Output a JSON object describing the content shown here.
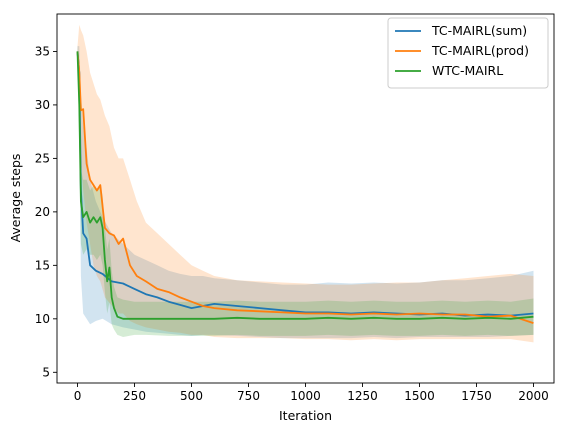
{
  "chart_data": {
    "type": "line",
    "title": "",
    "xlabel": "Iteration",
    "ylabel": "Average steps",
    "xlim": [
      -90,
      2090
    ],
    "ylim": [
      4,
      38.5
    ],
    "xticks": [
      0,
      250,
      500,
      750,
      1000,
      1250,
      1500,
      1750,
      2000
    ],
    "yticks": [
      5,
      10,
      15,
      20,
      25,
      30,
      35
    ],
    "grid": false,
    "legend_position": "top-right",
    "series": [
      {
        "name": "TC-MAIRL(sum)",
        "color": "#1f77b4",
        "band_color": "#1f77b4",
        "x": [
          0,
          8,
          15,
          25,
          40,
          55,
          80,
          110,
          150,
          200,
          250,
          300,
          350,
          400,
          450,
          500,
          550,
          600,
          700,
          800,
          900,
          1000,
          1100,
          1200,
          1300,
          1400,
          1500,
          1600,
          1700,
          1800,
          1900,
          2000
        ],
        "y": [
          35,
          33,
          22,
          18,
          17.5,
          15,
          14.5,
          14.2,
          13.5,
          13.3,
          12.8,
          12.3,
          12,
          11.6,
          11.3,
          11,
          11.2,
          11.4,
          11.2,
          11,
          10.8,
          10.6,
          10.6,
          10.5,
          10.6,
          10.5,
          10.4,
          10.5,
          10.3,
          10.4,
          10.3,
          10.5
        ],
        "lower": [
          34.5,
          27,
          14,
          10.5,
          10,
          9.5,
          9.8,
          10,
          9.5,
          9.2,
          9,
          8.8,
          8.7,
          8.6,
          8.5,
          8.4,
          8.5,
          8.5,
          8.4,
          8.3,
          8.2,
          8.2,
          8.2,
          8.2,
          8.3,
          8.2,
          8.3,
          8.3,
          8.3,
          8.3,
          8.4,
          8.5
        ],
        "upper": [
          35.5,
          35.5,
          31,
          28,
          26,
          23,
          21,
          19.5,
          18,
          17,
          16,
          15.5,
          15,
          14.5,
          14.2,
          14,
          14,
          13.8,
          13.6,
          13.4,
          13.2,
          13.2,
          13.4,
          13.3,
          13.4,
          13.3,
          13.4,
          13.6,
          13.6,
          13.8,
          14,
          14.5
        ]
      },
      {
        "name": "TC-MAIRL(prod)",
        "color": "#ff7f0e",
        "band_color": "#ff7f0e",
        "x": [
          0,
          8,
          15,
          25,
          40,
          55,
          70,
          85,
          100,
          120,
          140,
          160,
          180,
          200,
          230,
          260,
          300,
          350,
          400,
          450,
          500,
          550,
          600,
          700,
          800,
          900,
          1000,
          1100,
          1200,
          1300,
          1400,
          1500,
          1600,
          1700,
          1800,
          1900,
          2000
        ],
        "y": [
          35,
          33,
          29.5,
          29.6,
          24.5,
          23,
          22.5,
          22,
          22.5,
          18.5,
          18,
          17.8,
          17,
          17.5,
          15,
          14,
          13.5,
          12.8,
          12.5,
          12,
          11.6,
          11.2,
          11,
          10.8,
          10.7,
          10.6,
          10.5,
          10.5,
          10.4,
          10.5,
          10.4,
          10.5,
          10.4,
          10.4,
          10.2,
          10.3,
          9.6
        ],
        "lower": [
          34.5,
          32,
          25,
          22,
          19,
          17,
          15,
          14,
          13.5,
          12,
          11.5,
          11,
          10.5,
          10.5,
          9.8,
          9.5,
          9.2,
          9,
          8.8,
          8.7,
          8.5,
          8.5,
          8.3,
          8.2,
          8.2,
          8.2,
          8.1,
          8.1,
          8,
          8.1,
          8,
          8.1,
          8.1,
          8.1,
          8.1,
          8.1,
          7.8
        ],
        "upper": [
          35.5,
          37.5,
          37,
          36.5,
          35,
          33,
          32,
          31,
          30.5,
          29,
          28,
          26,
          25,
          25,
          23,
          21,
          19,
          18,
          17,
          16,
          15,
          14.5,
          14,
          13.6,
          13.5,
          13.4,
          13.3,
          13.2,
          13.2,
          13.3,
          13.4,
          13.4,
          13.6,
          13.8,
          14,
          14.2,
          14
        ]
      },
      {
        "name": "WTC-MAIRL",
        "color": "#2ca02c",
        "band_color": "#2ca02c",
        "x": [
          0,
          8,
          15,
          25,
          40,
          55,
          70,
          85,
          100,
          110,
          120,
          130,
          140,
          150,
          160,
          175,
          200,
          250,
          300,
          400,
          500,
          600,
          700,
          800,
          900,
          1000,
          1100,
          1200,
          1300,
          1400,
          1500,
          1600,
          1700,
          1800,
          1900,
          2000
        ],
        "y": [
          35,
          30,
          21,
          19.5,
          20,
          19,
          19.5,
          19,
          19.5,
          18.5,
          15.5,
          13.5,
          14.8,
          12,
          11,
          10.2,
          10,
          10,
          10,
          10,
          10,
          10,
          10.1,
          10,
          10,
          10,
          10.1,
          10,
          10.1,
          10,
          10,
          10.1,
          10,
          10.1,
          10,
          10.2
        ],
        "lower": [
          34.5,
          26,
          17,
          16,
          16.5,
          16,
          16,
          15.5,
          16,
          15,
          12.5,
          10.5,
          11.5,
          9.5,
          9,
          8.5,
          8.3,
          8.5,
          8.5,
          8.4,
          8.4,
          8.4,
          8.5,
          8.4,
          8.4,
          8.4,
          8.5,
          8.4,
          8.5,
          8.4,
          8.4,
          8.5,
          8.4,
          8.5,
          8.4,
          8.5
        ],
        "upper": [
          35.5,
          33,
          24,
          23,
          23,
          22,
          22.5,
          22,
          22.5,
          21.5,
          18.5,
          16.5,
          17.5,
          14.5,
          13,
          12,
          11.8,
          11.6,
          11.6,
          11.6,
          11.6,
          11.6,
          11.7,
          11.6,
          11.6,
          11.6,
          11.7,
          11.6,
          11.7,
          11.6,
          11.6,
          11.7,
          11.6,
          11.7,
          11.6,
          11.9
        ]
      }
    ]
  }
}
